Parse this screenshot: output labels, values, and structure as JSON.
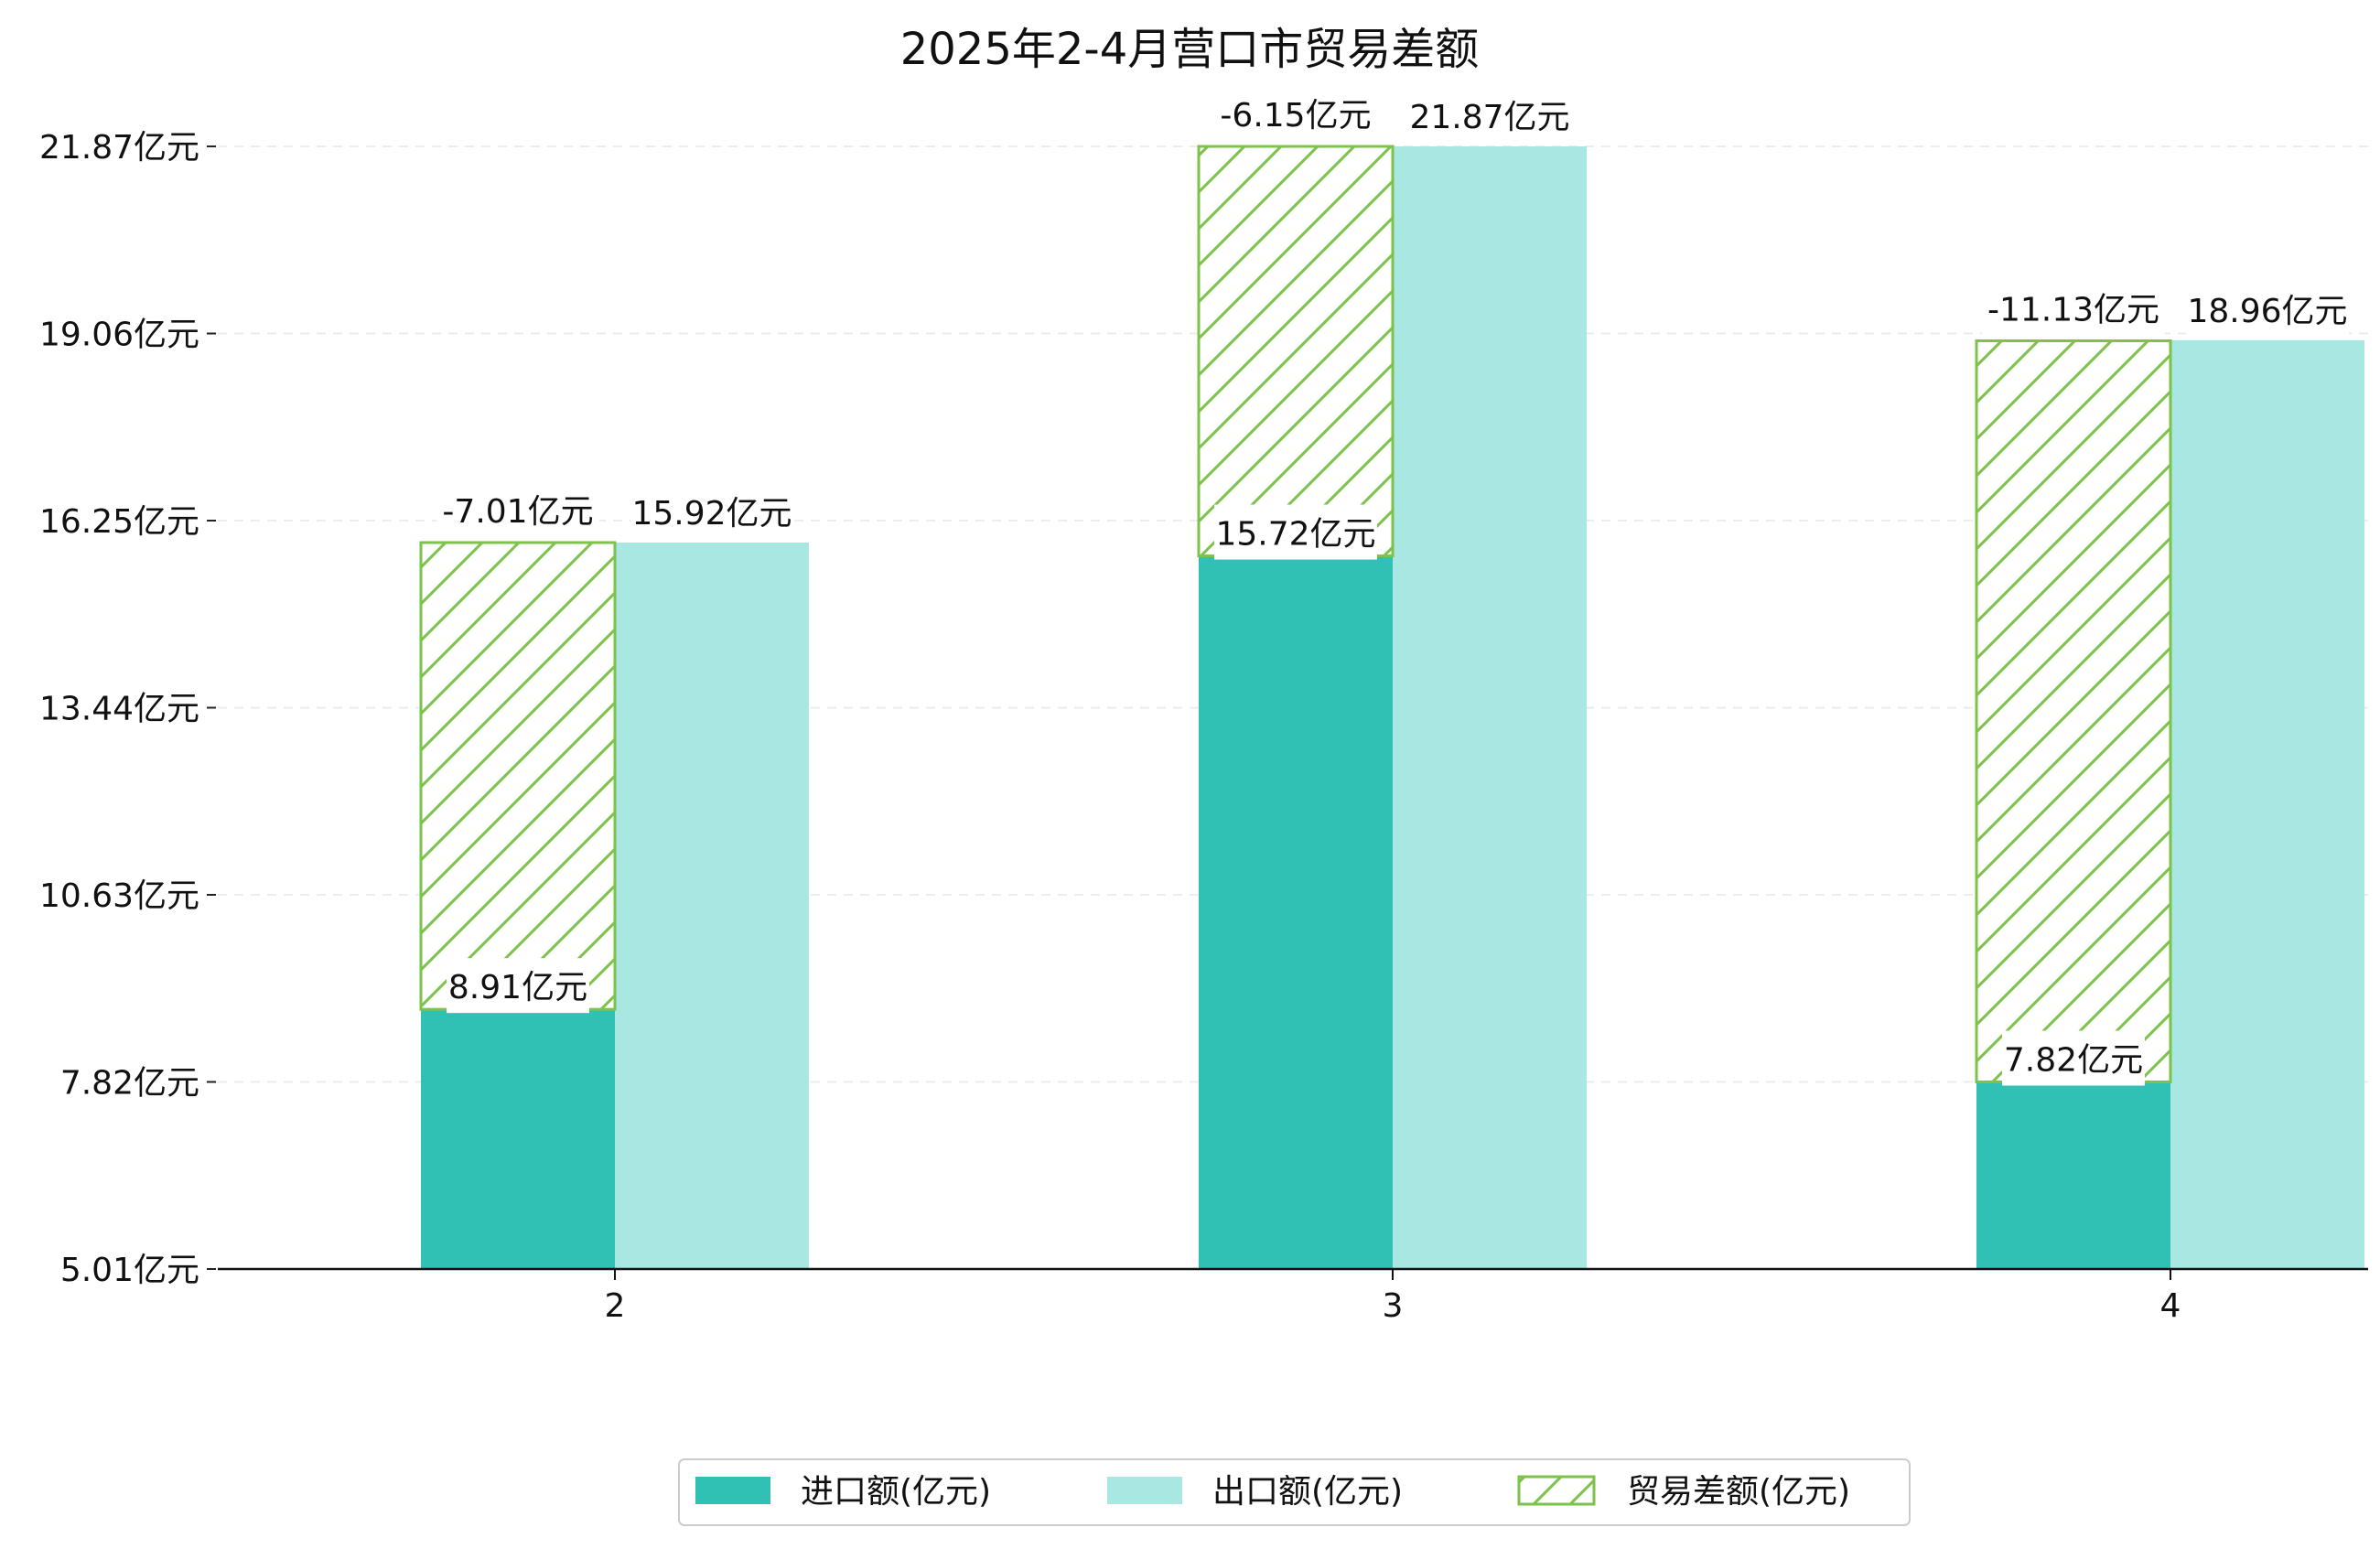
{
  "chart_data": {
    "type": "bar",
    "title": "2025年2-4月营口市贸易差额",
    "xlabel": "",
    "ylabel": "",
    "categories": [
      "2",
      "3",
      "4"
    ],
    "series": [
      {
        "name": "进口额(亿元)",
        "values": [
          8.91,
          15.72,
          7.82
        ],
        "labels": [
          "8.91亿元",
          "15.72亿元",
          "7.82亿元"
        ],
        "color": "#31c0b4"
      },
      {
        "name": "出口额(亿元)",
        "values": [
          15.92,
          21.87,
          18.96
        ],
        "labels": [
          "15.92亿元",
          "21.87亿元",
          "18.96亿元"
        ],
        "color": "#a8e7e2"
      },
      {
        "name": "贸易差额(亿元)",
        "values": [
          -7.01,
          -6.15,
          -11.13
        ],
        "labels": [
          "-7.01亿元",
          "-6.15亿元",
          "-11.13亿元"
        ],
        "color": "#7dc24b"
      }
    ],
    "yticks": [
      5.01,
      7.82,
      10.63,
      13.44,
      16.25,
      19.06,
      21.87
    ],
    "ytick_labels": [
      "5.01亿元",
      "7.82亿元",
      "10.63亿元",
      "13.44亿元",
      "16.25亿元",
      "19.06亿元",
      "21.87亿元"
    ],
    "ylim": [
      5.01,
      22.5
    ],
    "grid": true,
    "legend_position": "bottom-center"
  }
}
